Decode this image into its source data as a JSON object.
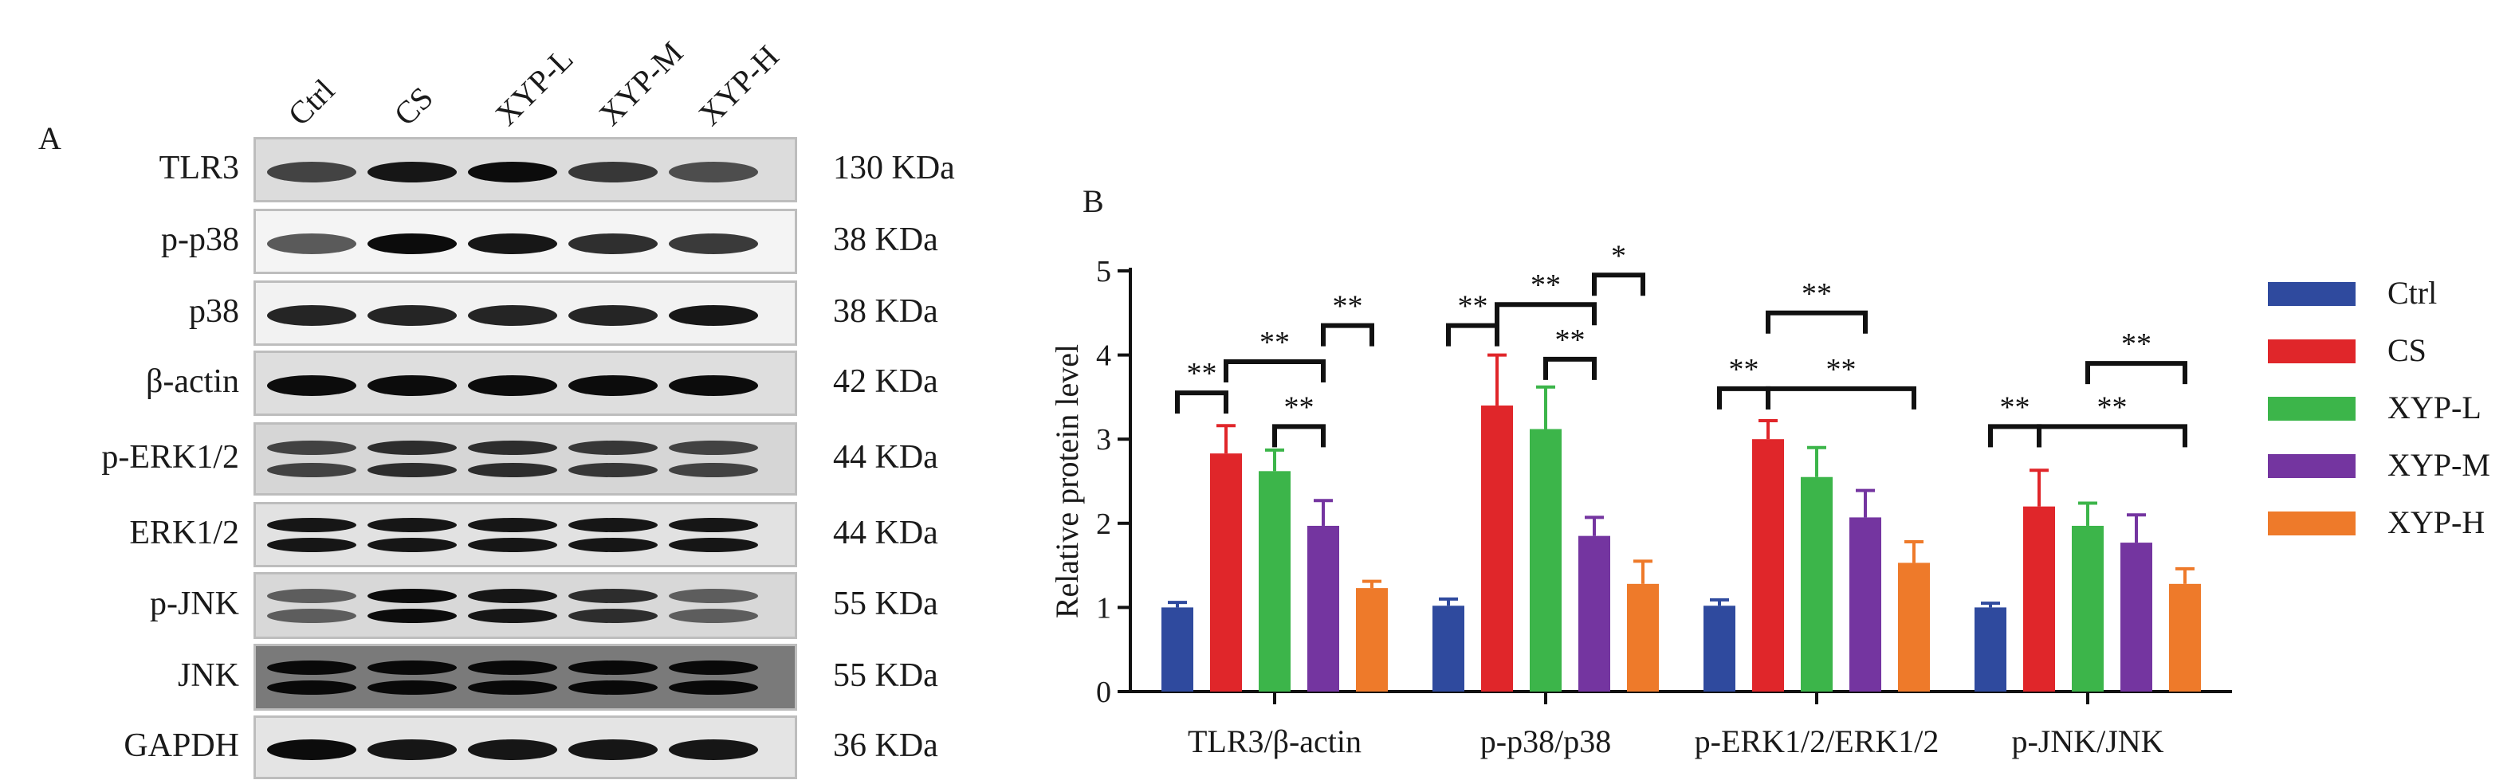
{
  "panel_a": {
    "letter": "A",
    "lanes": [
      "Ctrl",
      "CS",
      "XYP-L",
      "XYP-M",
      "XYP-H"
    ],
    "blots": [
      {
        "protein": "TLR3",
        "mw": "130 KDa",
        "bg": "#dcdcdc",
        "intensity": [
          0.7,
          0.9,
          0.95,
          0.75,
          0.65
        ],
        "double": false
      },
      {
        "protein": "p-p38",
        "mw": "38 KDa",
        "bg": "#f4f4f4",
        "intensity": [
          0.6,
          0.95,
          0.9,
          0.8,
          0.75
        ],
        "double": false
      },
      {
        "protein": "p38",
        "mw": "38 KDa",
        "bg": "#f2f2f2",
        "intensity": [
          0.85,
          0.85,
          0.85,
          0.85,
          0.9
        ],
        "double": false
      },
      {
        "protein": "β-actin",
        "mw": "42 KDa",
        "bg": "#dedede",
        "intensity": [
          0.95,
          0.95,
          0.95,
          0.95,
          0.95
        ],
        "double": false
      },
      {
        "protein": "p-ERK1/2",
        "mw": "44 KDa",
        "bg": "#d6d6d6",
        "intensity": [
          0.7,
          0.8,
          0.8,
          0.75,
          0.7
        ],
        "double": true
      },
      {
        "protein": "ERK1/2",
        "mw": "44 KDa",
        "bg": "#e2e2e2",
        "intensity": [
          0.9,
          0.9,
          0.9,
          0.9,
          0.9
        ],
        "double": true
      },
      {
        "protein": "p-JNK",
        "mw": "55 KDa",
        "bg": "#d8d8d8",
        "intensity": [
          0.55,
          0.95,
          0.9,
          0.8,
          0.55
        ],
        "double": true
      },
      {
        "protein": "JNK",
        "mw": "55 KDa",
        "bg": "#7a7a7a",
        "intensity": [
          0.95,
          0.95,
          0.95,
          0.95,
          0.95
        ],
        "double": true
      },
      {
        "protein": "GAPDH",
        "mw": "36 KDa",
        "bg": "#e4e4e4",
        "intensity": [
          0.95,
          0.9,
          0.9,
          0.9,
          0.9
        ],
        "double": false
      }
    ]
  },
  "chart_data": {
    "type": "bar",
    "panel_letter": "B",
    "ylabel": "Relative protein level",
    "xlabel": "",
    "ylim": [
      0,
      5
    ],
    "yticks": [
      0,
      1,
      2,
      3,
      4,
      5
    ],
    "categories": [
      "TLR3/β-actin",
      "p-p38/p38",
      "p-ERK1/2/ERK1/2",
      "p-JNK/JNK"
    ],
    "legend_position": "right",
    "series": [
      {
        "name": "Ctrl",
        "color": "#2f4a9e",
        "values": [
          1.0,
          1.02,
          1.02,
          1.0
        ],
        "errors": [
          0.06,
          0.08,
          0.07,
          0.05
        ]
      },
      {
        "name": "CS",
        "color": "#e0262a",
        "values": [
          2.83,
          3.4,
          3.0,
          2.2
        ],
        "errors": [
          0.33,
          0.6,
          0.22,
          0.43
        ]
      },
      {
        "name": "XYP-L",
        "color": "#3cb54a",
        "values": [
          2.62,
          3.12,
          2.55,
          1.97
        ],
        "errors": [
          0.25,
          0.5,
          0.35,
          0.27
        ]
      },
      {
        "name": "XYP-M",
        "color": "#7435a0",
        "values": [
          1.97,
          1.85,
          2.07,
          1.77
        ],
        "errors": [
          0.3,
          0.22,
          0.32,
          0.33
        ]
      },
      {
        "name": "XYP-H",
        "color": "#ee7a2a",
        "values": [
          1.23,
          1.28,
          1.53,
          1.28
        ],
        "errors": [
          0.08,
          0.27,
          0.25,
          0.18
        ]
      }
    ],
    "significance": [
      {
        "category": 0,
        "from": 0,
        "to": 1,
        "y": 3.55,
        "label": "**"
      },
      {
        "category": 0,
        "from": 1,
        "to": 3,
        "y": 3.92,
        "label": "**"
      },
      {
        "category": 0,
        "from": 2,
        "to": 3,
        "y": 3.15,
        "label": "**"
      },
      {
        "category": 0,
        "from": 3,
        "to": 4,
        "y": 4.35,
        "label": "**"
      },
      {
        "category": 1,
        "from": 0,
        "to": 1,
        "y": 4.35,
        "label": "**"
      },
      {
        "category": 1,
        "from": 1,
        "to": 3,
        "y": 4.6,
        "label": "**"
      },
      {
        "category": 1,
        "from": 2,
        "to": 3,
        "y": 3.95,
        "label": "**"
      },
      {
        "category": 1,
        "from": 3,
        "to": 4,
        "y": 4.95,
        "label": "*"
      },
      {
        "category": 2,
        "from": 0,
        "to": 1,
        "y": 3.6,
        "label": "**"
      },
      {
        "category": 2,
        "from": 1,
        "to": 4,
        "y": 3.6,
        "label": "**"
      },
      {
        "category": 2,
        "from": 1,
        "to": 3,
        "y": 4.5,
        "label": "**"
      },
      {
        "category": 3,
        "from": 0,
        "to": 1,
        "y": 3.15,
        "label": "**"
      },
      {
        "category": 3,
        "from": 1,
        "to": 4,
        "y": 3.15,
        "label": "**"
      },
      {
        "category": 3,
        "from": 2,
        "to": 4,
        "y": 3.9,
        "label": "**"
      }
    ]
  }
}
